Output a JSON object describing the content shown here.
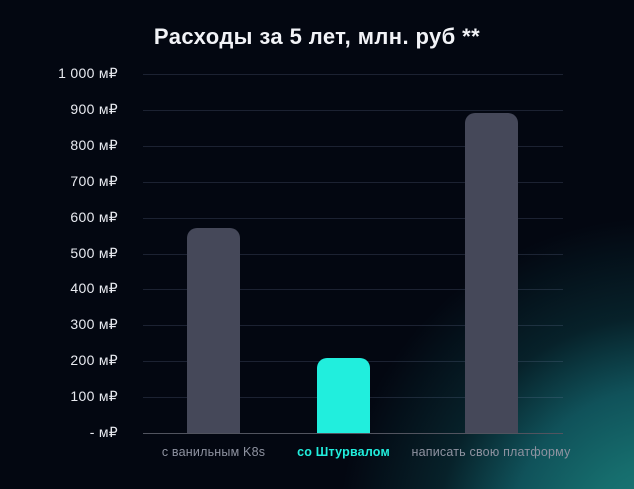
{
  "chart_data": {
    "type": "bar",
    "title": "Расходы за 5 лет, млн. руб **",
    "categories": [
      "с ванильным K8s",
      "со Штурвалом",
      "написать свою платформу"
    ],
    "values": [
      570,
      210,
      890
    ],
    "highlighted_index": 1,
    "xlabel": "",
    "ylabel": "",
    "ylim": [
      0,
      1000
    ],
    "ytick_step": 100,
    "y_tick_labels": [
      "1 000 м₽",
      "900 м₽",
      "800 м₽",
      "700 м₽",
      "600 м₽",
      "500 м₽",
      "400 м₽",
      "300 м₽",
      "200 м₽",
      "100 м₽",
      "- м₽"
    ],
    "grid": true,
    "legend_position": "none",
    "colors": {
      "bar_default": "#454859",
      "bar_highlight": "#21eedd",
      "category_label_default": "#8f93a1",
      "category_label_highlight": "#21eedd",
      "title": "#f2f3f7",
      "tick_label": "#e9ebf1",
      "background": "#030711",
      "corner_glow": "#166d6d",
      "gridline": "rgba(120,132,170,0.22)",
      "axis_line": "#51545f"
    }
  }
}
